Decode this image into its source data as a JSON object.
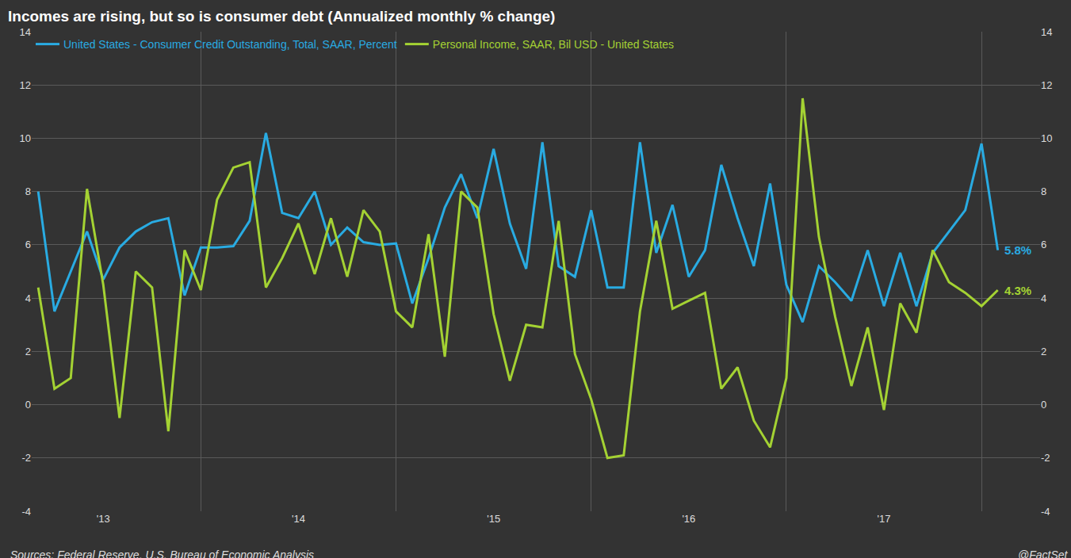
{
  "chart_data": {
    "type": "line",
    "title": "Incomes are rising, but so is consumer debt (Annualized monthly % change)",
    "annotations": [
      "Sources: Federal Reserve, U.S. Bureau of Economic Analysis",
      "@FactSet"
    ],
    "categories": [
      null,
      null,
      null,
      null,
      "'13",
      null,
      null,
      null,
      null,
      null,
      null,
      null,
      null,
      null,
      null,
      null,
      "'14",
      null,
      null,
      null,
      null,
      null,
      null,
      null,
      null,
      null,
      null,
      null,
      "'15",
      null,
      null,
      null,
      null,
      null,
      null,
      null,
      null,
      null,
      null,
      null,
      "'16",
      null,
      null,
      null,
      null,
      null,
      null,
      null,
      null,
      null,
      null,
      null,
      "'17",
      null,
      null,
      null,
      null,
      null,
      null,
      null
    ],
    "series": [
      {
        "name": "United States - Consumer Credit Outstanding, Total, SAAR, Percent",
        "color": "#29abe2",
        "values": [
          8.0,
          3.5,
          5.0,
          6.5,
          4.7,
          5.9,
          6.5,
          6.85,
          7.0,
          4.1,
          5.9,
          5.9,
          5.95,
          6.9,
          10.2,
          7.2,
          7.0,
          8.0,
          6.0,
          6.65,
          6.1,
          6.0,
          6.05,
          3.8,
          5.5,
          7.4,
          8.65,
          7.0,
          9.6,
          6.8,
          5.1,
          9.85,
          5.2,
          4.8,
          7.3,
          4.4,
          4.4,
          9.85,
          5.7,
          7.5,
          4.8,
          5.8,
          9.0,
          7.0,
          5.2,
          8.3,
          4.5,
          3.1,
          5.2,
          4.6,
          3.9,
          5.8,
          3.7,
          5.7,
          3.7,
          5.7,
          6.5,
          7.3,
          9.8,
          5.8
        ],
        "value_labels": [
          null,
          null,
          null,
          null,
          null,
          null,
          null,
          null,
          null,
          null,
          null,
          null,
          null,
          null,
          null,
          null,
          null,
          null,
          null,
          null,
          null,
          null,
          null,
          null,
          null,
          null,
          null,
          null,
          null,
          null,
          null,
          null,
          null,
          null,
          null,
          null,
          null,
          null,
          null,
          null,
          null,
          null,
          null,
          null,
          null,
          null,
          null,
          null,
          null,
          null,
          null,
          null,
          null,
          null,
          null,
          null,
          null,
          null,
          null,
          "5.8%"
        ]
      },
      {
        "name": "Personal Income, SAAR, Bil USD - United States",
        "color": "#a4d233",
        "values": [
          4.4,
          0.6,
          1.0,
          8.1,
          4.5,
          -0.5,
          5.0,
          4.4,
          -1.0,
          5.8,
          4.3,
          7.7,
          8.9,
          9.1,
          4.4,
          5.5,
          6.8,
          4.9,
          7.0,
          4.8,
          7.3,
          6.5,
          3.5,
          2.9,
          6.4,
          1.8,
          8.0,
          7.4,
          3.4,
          0.9,
          3.0,
          2.9,
          6.9,
          1.9,
          0.2,
          -2.0,
          -1.9,
          3.5,
          6.9,
          3.6,
          3.9,
          4.2,
          0.6,
          1.4,
          -0.6,
          -1.6,
          1.0,
          11.5,
          6.3,
          3.3,
          0.7,
          2.9,
          -0.2,
          3.8,
          2.7,
          5.8,
          4.6,
          4.2,
          3.7,
          4.3
        ],
        "value_labels": [
          null,
          null,
          null,
          null,
          null,
          null,
          null,
          null,
          null,
          null,
          null,
          null,
          null,
          null,
          null,
          null,
          null,
          null,
          null,
          null,
          null,
          null,
          null,
          null,
          null,
          null,
          null,
          null,
          null,
          null,
          null,
          null,
          null,
          null,
          null,
          null,
          null,
          null,
          null,
          null,
          null,
          null,
          null,
          null,
          null,
          null,
          null,
          null,
          null,
          null,
          null,
          null,
          null,
          null,
          null,
          null,
          null,
          null,
          null,
          "4.3%"
        ]
      }
    ],
    "ylim": [
      -4,
      14
    ],
    "yticks": [
      -4,
      -2,
      0,
      2,
      4,
      6,
      8,
      10,
      12,
      14
    ],
    "y2lim": [
      -4,
      14
    ],
    "y2ticks": [
      -4,
      -2,
      0,
      2,
      4,
      6,
      8,
      10,
      12,
      14
    ],
    "grid": true,
    "legend": "top left"
  }
}
